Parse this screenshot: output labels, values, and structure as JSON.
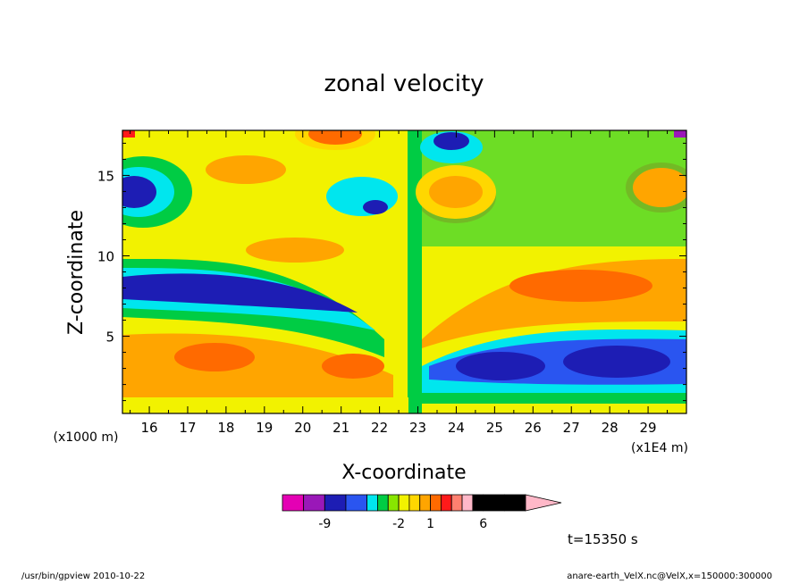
{
  "chart_data": {
    "type": "heatmap",
    "title": "zonal velocity",
    "xlabel": "X-coordinate",
    "ylabel": "Z-coordinate",
    "x_unit": "(x1E4 m)",
    "y_unit": "(x1000 m)",
    "xlim": [
      15.3,
      30.0
    ],
    "ylim": [
      0.2,
      17.8
    ],
    "x_ticks": [
      "16",
      "17",
      "18",
      "19",
      "20",
      "21",
      "22",
      "23",
      "24",
      "25",
      "26",
      "27",
      "28",
      "29"
    ],
    "x_tick_values": [
      16,
      17,
      18,
      19,
      20,
      21,
      22,
      23,
      24,
      25,
      26,
      27,
      28,
      29
    ],
    "y_ticks": [
      "5",
      "10",
      "15"
    ],
    "y_tick_values": [
      5,
      10,
      15
    ],
    "colorbar": {
      "levels": [
        -13,
        -11,
        -9,
        -7,
        -5,
        -4,
        -3,
        -2,
        -1,
        0,
        1,
        2,
        3,
        4,
        5,
        6,
        8,
        10
      ],
      "tick_labels": [
        "-9",
        "-2",
        "1",
        "6"
      ],
      "tick_values": [
        -9,
        -2,
        1,
        6
      ],
      "colors": [
        "#e400b4",
        "#9a18b8",
        "#1d1db4",
        "#2a55f0",
        "#00e6ee",
        "#00cc44",
        "#88e600",
        "#f2f200",
        "#ffd700",
        "#ffa500",
        "#ff6a00",
        "#ff1a1a",
        "#ff8070",
        "#ffb8c8"
      ]
    },
    "annotation": "t=15350 s"
  },
  "footer": {
    "left": "/usr/bin/gpview   2010-10-22",
    "right": "anare-earth_VelX.nc@VelX,x=150000:300000"
  }
}
